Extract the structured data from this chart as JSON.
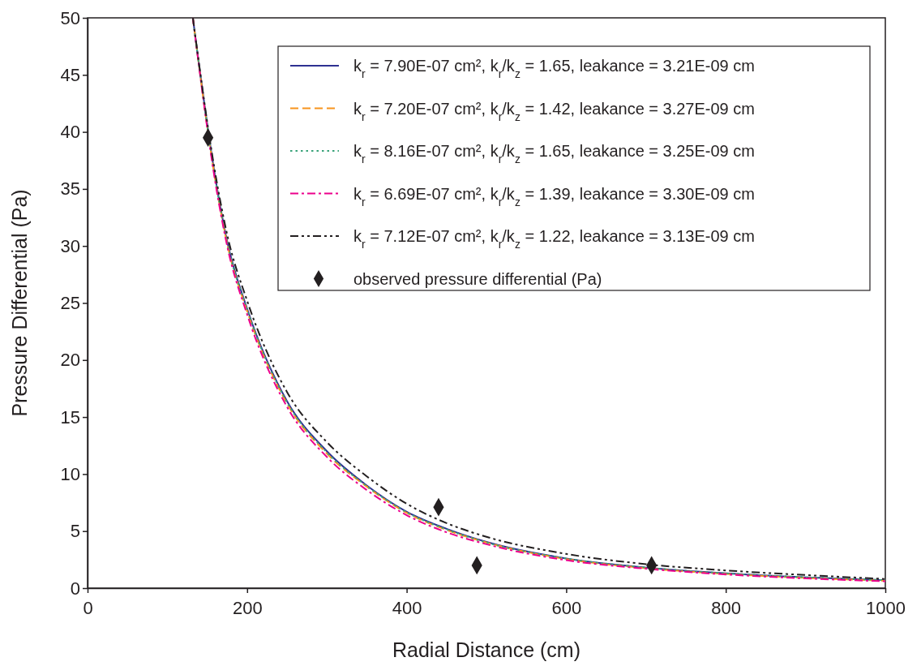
{
  "chart_data": {
    "type": "line",
    "xlabel": "Radial Distance (cm)",
    "ylabel": "Pressure Differential (Pa)",
    "xlim": [
      0,
      1000
    ],
    "xticks": [
      0,
      200,
      400,
      600,
      800,
      1000
    ],
    "ylim": [
      0,
      50
    ],
    "yticks": [
      0,
      5,
      10,
      15,
      20,
      25,
      30,
      35,
      40,
      45,
      50
    ],
    "grid": false,
    "legend": "top right",
    "series": [
      {
        "name": "k$_{r}$ = 7.90E-07 cm², k$_{r}$/k$_{z}$ = 1.65, leakance = 3.21E-09 cm",
        "color": "#2e3192",
        "line_style": "solid",
        "x": [
          132,
          162,
          175,
          200,
          250,
          300,
          350,
          400,
          450,
          500,
          600,
          700,
          800,
          900,
          1000
        ],
        "values": [
          50,
          35.2,
          30.4,
          24.5,
          16.4,
          12.0,
          9.0,
          6.7,
          5.2,
          4.05,
          2.6,
          1.8,
          1.3,
          0.95,
          0.7
        ]
      },
      {
        "name": "k$_{r}$ = 7.20E-07 cm², k$_{r}$/k$_{z}$ = 1.42, leakance = 3.27E-09 cm",
        "color": "#f7941d",
        "line_style": "dashed",
        "x": [
          132,
          162,
          175,
          200,
          250,
          300,
          350,
          400,
          450,
          500,
          600,
          700,
          800,
          900,
          1000
        ],
        "values": [
          50,
          35.0,
          30.2,
          24.3,
          16.2,
          11.8,
          8.9,
          6.6,
          5.1,
          4.0,
          2.55,
          1.75,
          1.25,
          0.9,
          0.65
        ]
      },
      {
        "name": "k$_{r}$ = 8.16E-07 cm², k$_{r}$/k$_{z}$ = 1.65, leakance = 3.25E-09 cm",
        "color": "#3aa37a",
        "line_style": "dotted",
        "x": [
          132,
          162,
          175,
          200,
          250,
          300,
          350,
          400,
          450,
          500,
          600,
          700,
          800,
          900,
          1000
        ],
        "values": [
          50,
          35.1,
          30.3,
          24.4,
          16.3,
          11.9,
          8.95,
          6.65,
          5.15,
          4.0,
          2.6,
          1.8,
          1.3,
          0.95,
          0.7
        ]
      },
      {
        "name": "k$_{r}$ = 6.69E-07 cm², k$_{r}$/k$_{z}$ = 1.39, leakance = 3.30E-09 cm",
        "color": "#ec008c",
        "line_style": "dashdot",
        "x": [
          132,
          162,
          175,
          200,
          250,
          300,
          350,
          400,
          450,
          500,
          600,
          700,
          800,
          900,
          1000
        ],
        "values": [
          50,
          34.8,
          30.0,
          24.0,
          15.9,
          11.5,
          8.6,
          6.4,
          4.9,
          3.85,
          2.45,
          1.7,
          1.2,
          0.85,
          0.6
        ]
      },
      {
        "name": "k$_{r}$ = 7.12E-07 cm², k$_{r}$/k$_{z}$ = 1.22, leakance = 3.13E-09 cm",
        "color": "#231f20",
        "line_style": "dashdotdot",
        "x": [
          132,
          162,
          175,
          200,
          250,
          300,
          350,
          400,
          450,
          500,
          600,
          700,
          800,
          900,
          1000
        ],
        "values": [
          50,
          35.6,
          31.0,
          25.2,
          17.2,
          12.8,
          9.8,
          7.4,
          5.7,
          4.5,
          3.0,
          2.1,
          1.55,
          1.15,
          0.8
        ]
      },
      {
        "name": "observed pressure differential (Pa)",
        "type": "scatter",
        "marker": "diamond",
        "color": "#231f20",
        "x": [
          151,
          440,
          488,
          707
        ],
        "values": [
          39.5,
          7.1,
          2.0,
          2.0
        ]
      }
    ]
  }
}
